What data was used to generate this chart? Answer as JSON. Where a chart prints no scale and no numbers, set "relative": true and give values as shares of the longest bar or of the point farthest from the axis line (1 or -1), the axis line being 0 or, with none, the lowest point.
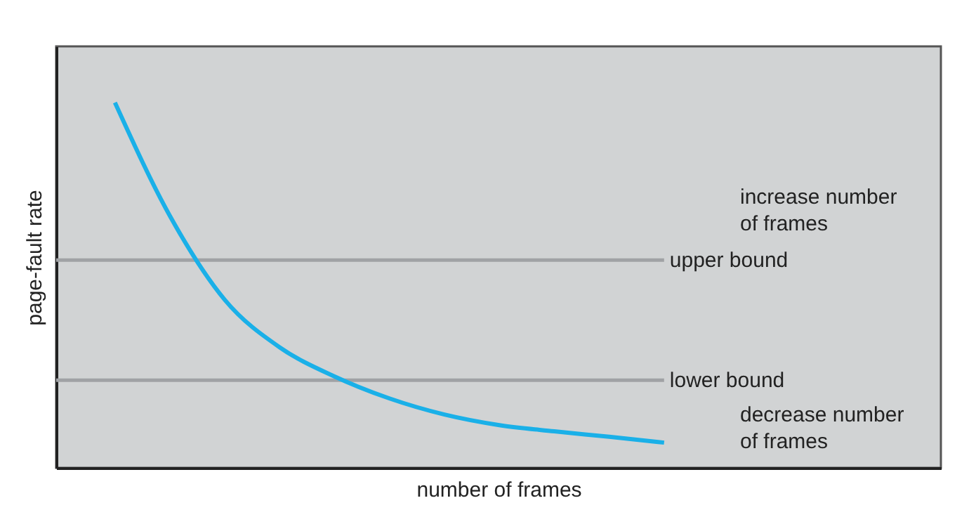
{
  "chart_data": {
    "type": "line",
    "relative": true,
    "xlabel": "number of frames",
    "ylabel": "page-fault rate",
    "categories": [
      null,
      null,
      null,
      null,
      null,
      null,
      null,
      null,
      null,
      null,
      null
    ],
    "series": [
      {
        "color": "#1ab0e8",
        "values": [
          1,
          0.69,
          0.46,
          0.33,
          0.25,
          0.19,
          0.146,
          0.117,
          0.1,
          0.085,
          0.069
        ]
      }
    ],
    "ref_lines": [
      {
        "axis": "y",
        "value": 0.569,
        "label": "upper bound",
        "color": "#a0a2a5"
      },
      {
        "axis": "y",
        "value": 0.24,
        "label": "lower bound",
        "color": "#a0a2a5"
      }
    ],
    "annotations": [
      "increase number\nof frames",
      "decrease number\nof frames"
    ],
    "tick_labels": false,
    "grid": false,
    "marker": "none",
    "line_style": "solid"
  }
}
